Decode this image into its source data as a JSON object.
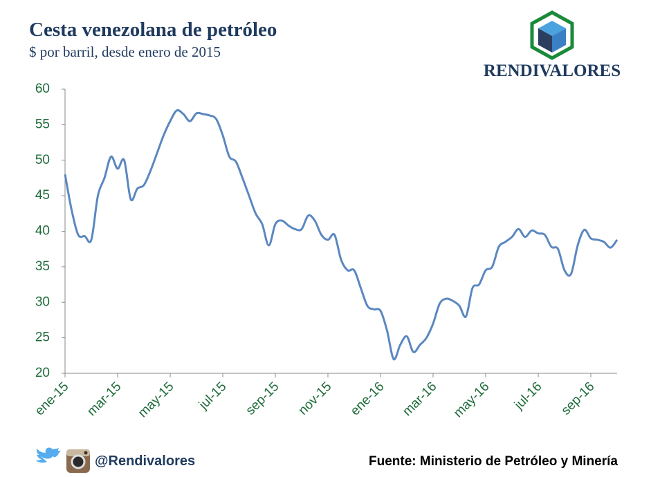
{
  "chart_data": {
    "type": "line",
    "title": "Cesta venezolana de petróleo",
    "subtitle": "$ por barril, desde enero de 2015",
    "brand": "RENDIVALORES",
    "handle": "@Rendivalores",
    "source": "Fuente: Ministerio de Petróleo y Minería",
    "categories": [
      "ene-15",
      null,
      null,
      null,
      null,
      null,
      null,
      null,
      "mar-15",
      null,
      null,
      null,
      null,
      null,
      null,
      null,
      "may-15",
      null,
      null,
      null,
      null,
      null,
      null,
      null,
      "jul-15",
      null,
      null,
      null,
      null,
      null,
      null,
      null,
      "sep-15",
      null,
      null,
      null,
      null,
      null,
      null,
      null,
      "nov-15",
      null,
      null,
      null,
      null,
      null,
      null,
      null,
      "ene-16",
      null,
      null,
      null,
      null,
      null,
      null,
      null,
      "mar-16",
      null,
      null,
      null,
      null,
      null,
      null,
      null,
      "may-16",
      null,
      null,
      null,
      null,
      null,
      null,
      null,
      "jul-16",
      null,
      null,
      null,
      null,
      null,
      null,
      null,
      "sep-16",
      null,
      null,
      null,
      null
    ],
    "series": [
      {
        "name": "Cesta venezolana",
        "color": "#5b87c0",
        "values": [
          48,
          43,
          39.5,
          39.3,
          38.8,
          45,
          47.5,
          50.5,
          48.8,
          50,
          44.5,
          46,
          46.5,
          48.5,
          51,
          53.5,
          55.5,
          57,
          56.5,
          55.5,
          56.6,
          56.5,
          56.3,
          55.8,
          53.5,
          50.5,
          49.8,
          47.5,
          45,
          42.5,
          41,
          38,
          41,
          41.5,
          40.8,
          40.3,
          40.3,
          42.2,
          41.5,
          39.5,
          38.8,
          39.5,
          36,
          34.5,
          34.5,
          32,
          29.5,
          29,
          28.8,
          26,
          22,
          24,
          25.2,
          23,
          24,
          25,
          27,
          29.8,
          30.5,
          30.2,
          29.5,
          28,
          32,
          32.5,
          34.5,
          35,
          37.8,
          38.5,
          39.2,
          40.3,
          39.2,
          40.1,
          39.7,
          39.5,
          37.8,
          37.5,
          34.5,
          34,
          38,
          40.2,
          39,
          38.8,
          38.5,
          37.7,
          38.8
        ]
      }
    ],
    "ylim": [
      20,
      60
    ],
    "yticks": [
      20,
      25,
      30,
      35,
      40,
      45,
      50,
      55,
      60
    ],
    "grid": false
  }
}
